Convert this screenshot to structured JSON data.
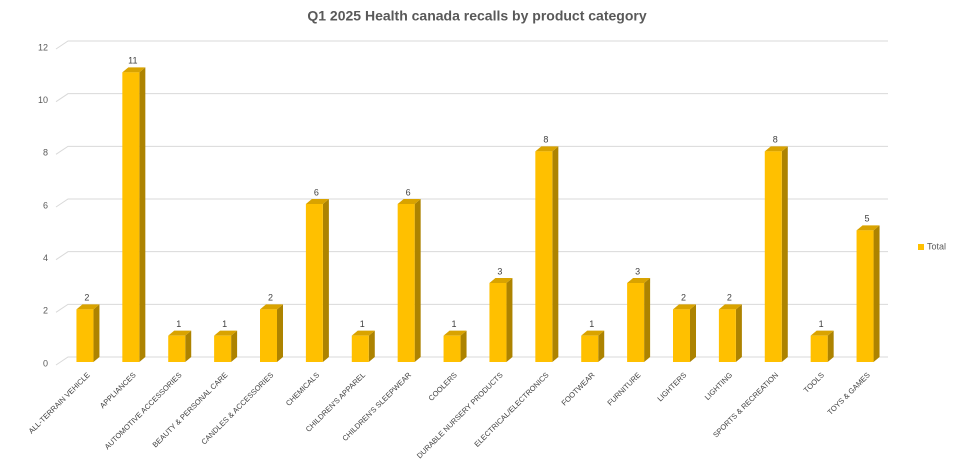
{
  "chart_data": {
    "type": "bar3d",
    "title": "Q1 2025 Health canada recalls by product category",
    "categories": [
      "ALL-TERRAIN VEHICLE",
      "APPLIANCES",
      "AUTOMOTIVE ACCESSORIES",
      "BEAUTY & PERSONAL CARE",
      "CANDLES & ACCESSORIES",
      "CHEMICALS",
      "CHILDREN'S APPAREL",
      "CHILDREN'S SLEEPWEAR",
      "COOLERS",
      "DURABLE NURSERY PRODUCTS",
      "ELECTRICAL/ELECTRONICS",
      "FOOTWEAR",
      "FURNITURE",
      "LIGHTERS",
      "LIGHTING",
      "SPORTS & RECREATION",
      "TOOLS",
      "TOYS & GAMES"
    ],
    "series": [
      {
        "name": "Total",
        "color": "#ffc000",
        "values": [
          2,
          11,
          1,
          1,
          2,
          6,
          1,
          6,
          1,
          3,
          8,
          1,
          3,
          2,
          2,
          8,
          1,
          5
        ]
      }
    ],
    "ylim": [
      0,
      12
    ],
    "yticks": [
      0,
      2,
      4,
      6,
      8,
      10,
      12
    ],
    "grid": true,
    "legend": "right"
  }
}
